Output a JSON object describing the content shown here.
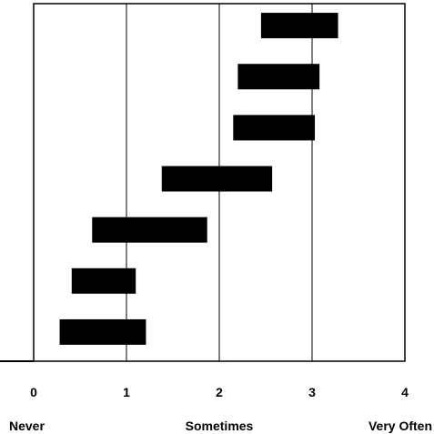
{
  "chart_data": {
    "type": "bar",
    "orientation": "horizontal-range",
    "xlim": [
      0,
      4
    ],
    "x_ticks": [
      "0",
      "1",
      "2",
      "3",
      "4"
    ],
    "x_anchor_labels": [
      "Never",
      "Sometimes",
      "Very Often"
    ],
    "grid": "vertical",
    "bar_color": "#000000",
    "bars": [
      {
        "start": 2.45,
        "end": 3.28
      },
      {
        "start": 2.2,
        "end": 3.08
      },
      {
        "start": 2.15,
        "end": 3.03
      },
      {
        "start": 1.38,
        "end": 2.57
      },
      {
        "start": 0.63,
        "end": 1.87
      },
      {
        "start": 0.41,
        "end": 1.1
      },
      {
        "start": 0.28,
        "end": 1.21
      }
    ]
  }
}
